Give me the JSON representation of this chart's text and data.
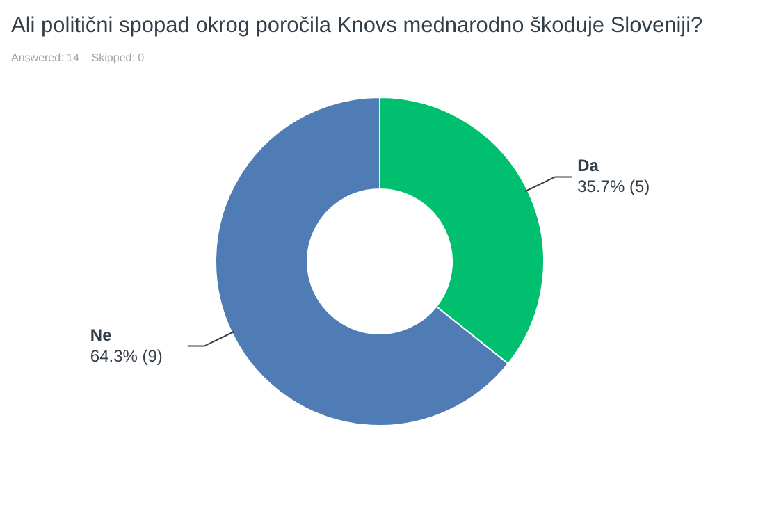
{
  "chart_data": {
    "type": "donut",
    "title": "Ali politični spopad okrog poročila Knovs mednarodno škoduje Sloveniji?",
    "subtitle": "Answered: 14    Skipped: 0",
    "categories": [
      "Da",
      "Ne"
    ],
    "values": [
      35.7,
      64.3
    ],
    "colors": [
      "#00bf6f",
      "#507cb6"
    ],
    "value_labels": [
      "35.7% (5)",
      "64.3% (9)"
    ],
    "legend": false
  }
}
